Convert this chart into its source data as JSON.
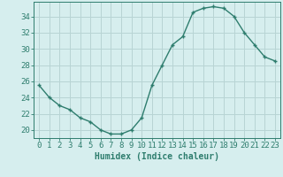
{
  "x": [
    0,
    1,
    2,
    3,
    4,
    5,
    6,
    7,
    8,
    9,
    10,
    11,
    12,
    13,
    14,
    15,
    16,
    17,
    18,
    19,
    20,
    21,
    22,
    23
  ],
  "y": [
    25.5,
    24.0,
    23.0,
    22.5,
    21.5,
    21.0,
    20.0,
    19.5,
    19.5,
    20.0,
    21.5,
    25.5,
    28.0,
    30.5,
    31.5,
    34.5,
    35.0,
    35.2,
    35.0,
    34.0,
    32.0,
    30.5,
    29.0,
    28.5
  ],
  "xlim": [
    -0.5,
    23.5
  ],
  "ylim": [
    19.0,
    35.8
  ],
  "yticks": [
    20,
    22,
    24,
    26,
    28,
    30,
    32,
    34
  ],
  "xticks": [
    0,
    1,
    2,
    3,
    4,
    5,
    6,
    7,
    8,
    9,
    10,
    11,
    12,
    13,
    14,
    15,
    16,
    17,
    18,
    19,
    20,
    21,
    22,
    23
  ],
  "xlabel": "Humidex (Indice chaleur)",
  "line_color": "#2e7d6e",
  "marker": "+",
  "bg_color": "#d6eeee",
  "grid_color": "#b8d4d4",
  "xlabel_fontsize": 7,
  "tick_fontsize": 6.5
}
